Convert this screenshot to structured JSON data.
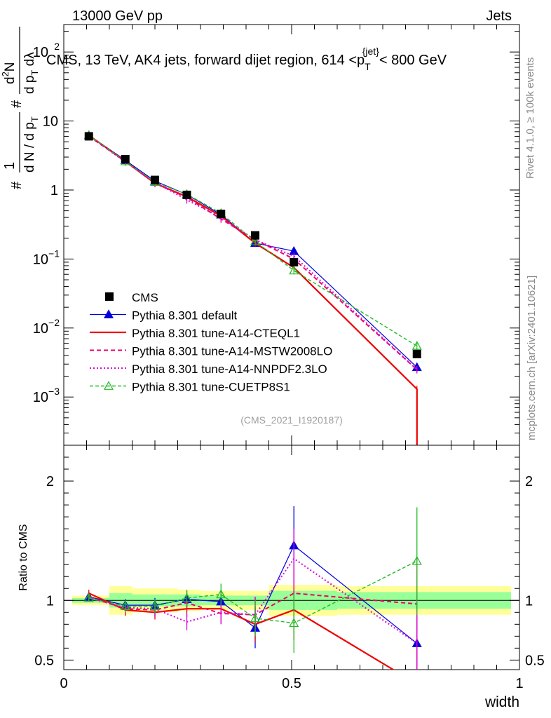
{
  "header": {
    "left": "13000 GeV pp",
    "right": "Jets"
  },
  "side_labels": {
    "rivet": "Rivet 4.1.0, ≥ 100k events",
    "mcplots": "mcplots.cern.ch [arXiv:2401.10621]"
  },
  "watermark": "(CMS_2021_I1920187)",
  "chart_data": {
    "type": "line",
    "title": "CMS, 13 TeV, AK4 jets, forward dijet region, 614 <p_T^{jet}< 800 GeV",
    "title_parts": {
      "main": "CMS, 13 TeV, AK4 jets, forward dijet region, 614 <p",
      "sub": "T",
      "sup": "{jet}",
      "tail": "< 800 GeV"
    },
    "xlabel": "width",
    "ylabel": "1/dN/dp_T dN/dp_T dλ",
    "ylabel_parts": {
      "n1": "1",
      "d1": "d N / d p",
      "d1sub": "T",
      "n2": "d",
      "n2sup": "2",
      "n2b": "N",
      "d2": "d p",
      "d2sub": "T",
      "d2b": " dλ",
      "hash": "#"
    },
    "ratio_ylabel": "Ratio to CMS",
    "xlim": [
      0,
      1
    ],
    "ylim": [
      0.0002,
      250
    ],
    "yscale": "log",
    "ratio_ylim": [
      0.42,
      2.3
    ],
    "x_ticks": [
      {
        "value": 0,
        "label": "0"
      },
      {
        "value": 0.5,
        "label": "0.5"
      },
      {
        "value": 1,
        "label": "1"
      }
    ],
    "y_ticks": [
      {
        "value": 100,
        "mant": "10",
        "exp": "2"
      },
      {
        "value": 10,
        "mant": "10",
        "exp": ""
      },
      {
        "value": 1,
        "mant": "1",
        "exp": ""
      },
      {
        "value": 0.1,
        "mant": "10",
        "exp": "−1"
      },
      {
        "value": 0.01,
        "mant": "10",
        "exp": "−2"
      },
      {
        "value": 0.001,
        "mant": "10",
        "exp": "−3"
      }
    ],
    "ratio_ticks": [
      {
        "value": 0.5,
        "label": "0.5"
      },
      {
        "value": 1,
        "label": "1"
      },
      {
        "value": 2,
        "label": "2"
      }
    ],
    "x": [
      0.055,
      0.135,
      0.2,
      0.27,
      0.345,
      0.42,
      0.505,
      0.775
    ],
    "bin_edges": [
      0,
      0.1,
      0.15,
      0.25,
      0.3,
      0.4,
      0.45,
      0.6,
      1.0
    ],
    "ratio_band_green": [
      0.02,
      0.06,
      0.05,
      0.05,
      0.04,
      0.04,
      0.08,
      0.07
    ],
    "ratio_band_yellow": [
      0.04,
      0.12,
      0.1,
      0.09,
      0.08,
      0.08,
      0.13,
      0.12
    ],
    "data": {
      "name": "CMS",
      "values": [
        6.0,
        2.8,
        1.4,
        0.85,
        0.45,
        0.22,
        0.09,
        0.0042
      ],
      "errors": [
        0.3,
        0.2,
        0.1,
        0.06,
        0.04,
        0.03,
        0.012,
        0.0005
      ]
    },
    "series": [
      {
        "name": "Pythia 8.301 default",
        "color": "#0000dd",
        "dash": "",
        "width": 1.2,
        "marker": "tri-filled",
        "values": [
          6.2,
          2.7,
          1.35,
          0.86,
          0.44,
          0.17,
          0.13,
          0.0027
        ],
        "ratio": [
          1.03,
          0.96,
          0.96,
          1.01,
          0.99,
          0.77,
          1.46,
          0.64
        ],
        "ratio_err": [
          0.03,
          0.05,
          0.06,
          0.07,
          0.09,
          0.17,
          0.33,
          0.4
        ]
      },
      {
        "name": "Pythia 8.301 tune-A14-CTEQL1",
        "color": "#ee0000",
        "dash": "",
        "width": 2.2,
        "marker": "none",
        "values": [
          6.2,
          2.6,
          1.25,
          0.8,
          0.42,
          0.17,
          0.075,
          0.0013
        ],
        "ratio": [
          1.06,
          0.92,
          0.9,
          0.93,
          0.93,
          0.8,
          0.92,
          0.3
        ],
        "ratio_err": [
          0.03,
          0.05,
          0.06,
          0.07,
          0.09,
          0.15,
          0.25,
          0.3
        ]
      },
      {
        "name": "Pythia 8.301 tune-A14-MSTW2008LO",
        "color": "#ee0066",
        "dash": "6,4",
        "width": 2.0,
        "marker": "none",
        "values": [
          6.0,
          2.6,
          1.25,
          0.78,
          0.38,
          0.19,
          0.1,
          0.0025
        ],
        "ratio": [
          1.03,
          0.93,
          0.92,
          0.98,
          0.89,
          0.88,
          1.06,
          0.97
        ],
        "ratio_err": [
          0.03,
          0.05,
          0.06,
          0.07,
          0.09,
          0.15,
          0.25,
          0.4
        ]
      },
      {
        "name": "Pythia 8.301 tune-A14-NNPDF2.3LO",
        "color": "#dd00dd",
        "dash": "2,3",
        "width": 2.0,
        "marker": "none",
        "values": [
          6.1,
          2.55,
          1.3,
          0.72,
          0.4,
          0.19,
          0.11,
          0.0025
        ],
        "ratio": [
          1.02,
          0.94,
          0.93,
          0.82,
          0.9,
          0.88,
          1.35,
          0.64
        ],
        "ratio_err": [
          0.03,
          0.05,
          0.06,
          0.07,
          0.09,
          0.15,
          0.25,
          0.4
        ]
      },
      {
        "name": "Pythia 8.301 tune-CUETP8S1",
        "color": "#22bb22",
        "dash": "5,3",
        "width": 1.4,
        "marker": "tri-open",
        "values": [
          6.2,
          2.6,
          1.3,
          0.87,
          0.46,
          0.18,
          0.068,
          0.0055
        ],
        "ratio": [
          1.02,
          0.95,
          0.95,
          1.02,
          1.05,
          0.85,
          0.81,
          1.33
        ],
        "ratio_err": [
          0.03,
          0.05,
          0.06,
          0.07,
          0.09,
          0.15,
          0.25,
          0.45
        ]
      }
    ]
  }
}
